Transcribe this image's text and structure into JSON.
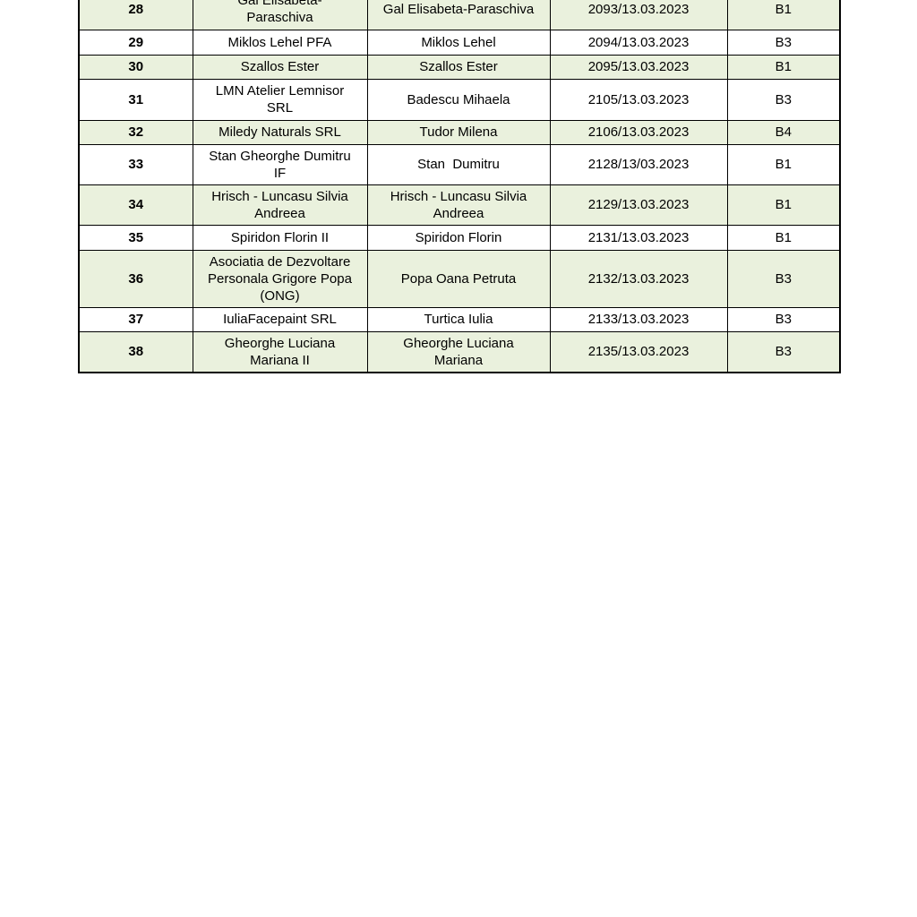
{
  "page": {
    "background_color": "#ffffff"
  },
  "table": {
    "shade_color": "#eaf1dd",
    "border_color": "#000000",
    "column_keys": [
      "index",
      "company",
      "person",
      "registration",
      "code"
    ],
    "rows": [
      {
        "index": "28",
        "company": "Gal Elisabeta-\nParaschiva",
        "person": "Gal Elisabeta-Paraschiva",
        "registration": "2093/13.03.2023",
        "code": "B1"
      },
      {
        "index": "29",
        "company": "Miklos Lehel PFA",
        "person": "Miklos Lehel",
        "registration": "2094/13.03.2023",
        "code": "B3"
      },
      {
        "index": "30",
        "company": "Szallos Ester",
        "person": "Szallos Ester",
        "registration": "2095/13.03.2023",
        "code": "B1"
      },
      {
        "index": "31",
        "company": "LMN Atelier Lemnisor\nSRL",
        "person": "Badescu Mihaela",
        "registration": "2105/13.03.2023",
        "code": "B3"
      },
      {
        "index": "32",
        "company": "Miledy Naturals SRL",
        "person": "Tudor Milena",
        "registration": "2106/13.03.2023",
        "code": "B4"
      },
      {
        "index": "33",
        "company": "Stan Gheorghe Dumitru\nIF",
        "person": "Stan  Dumitru",
        "registration": "2128/13/03.2023",
        "code": "B1"
      },
      {
        "index": "34",
        "company": "Hrisch - Luncasu Silvia\nAndreea",
        "person": "Hrisch - Luncasu Silvia\nAndreea",
        "registration": "2129/13.03.2023",
        "code": "B1"
      },
      {
        "index": "35",
        "company": "Spiridon Florin II",
        "person": "Spiridon Florin",
        "registration": "2131/13.03.2023",
        "code": "B1"
      },
      {
        "index": "36",
        "company": "Asociatia de Dezvoltare\nPersonala Grigore Popa\n(ONG)",
        "person": "Popa Oana Petruta",
        "registration": "2132/13.03.2023",
        "code": "B3"
      },
      {
        "index": "37",
        "company": "IuliaFacepaint SRL",
        "person": "Turtica Iulia",
        "registration": "2133/13.03.2023",
        "code": "B3"
      },
      {
        "index": "38",
        "company": "Gheorghe Luciana\nMariana II",
        "person": "Gheorghe Luciana\nMariana",
        "registration": "2135/13.03.2023",
        "code": "B3"
      }
    ]
  }
}
